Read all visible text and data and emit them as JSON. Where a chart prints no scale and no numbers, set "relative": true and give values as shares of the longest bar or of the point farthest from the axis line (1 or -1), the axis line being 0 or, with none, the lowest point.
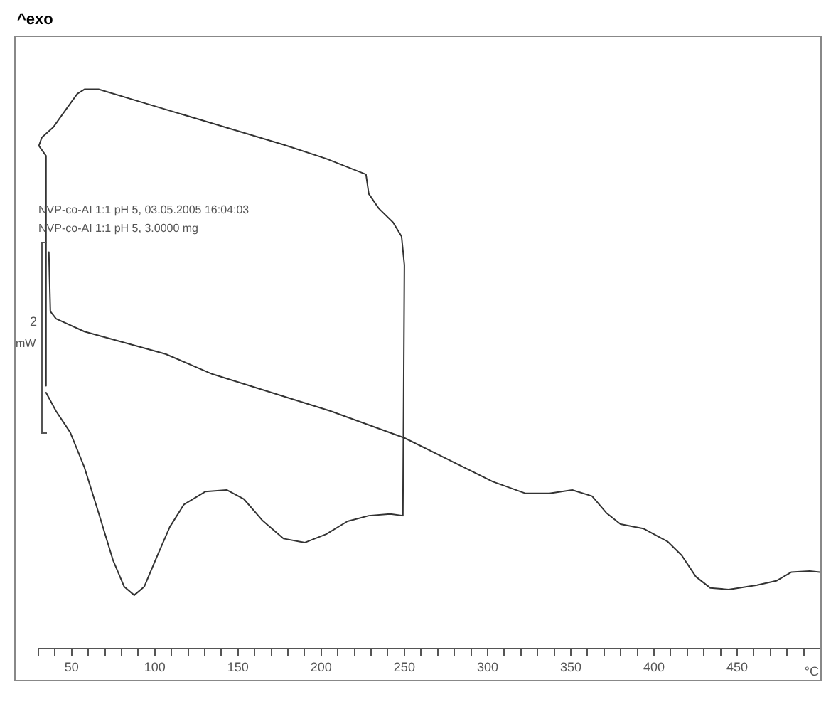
{
  "chart_data": {
    "type": "line",
    "title": "^exo",
    "xlabel": "°C",
    "relative": true,
    "legend": false,
    "grid": false,
    "marker": "none",
    "line_style": "solid",
    "annotations": [
      "NVP-co-AI 1:1 pH 5, 03.05.2005 16:04:03",
      "NVP-co-AI 1:1 pH 5, 3.0000 mg",
      "2",
      "mW"
    ],
    "xlim": [
      30,
      500
    ],
    "xticks": [
      {
        "value": 30,
        "label": null
      },
      {
        "value": 40,
        "label": null
      },
      50,
      {
        "value": 60,
        "label": null
      },
      {
        "value": 70,
        "label": null
      },
      {
        "value": 80,
        "label": null
      },
      {
        "value": 90,
        "label": null
      },
      100,
      {
        "value": 110,
        "label": null
      },
      {
        "value": 120,
        "label": null
      },
      {
        "value": 130,
        "label": null
      },
      {
        "value": 140,
        "label": null
      },
      150,
      {
        "value": 160,
        "label": null
      },
      {
        "value": 170,
        "label": null
      },
      {
        "value": 180,
        "label": null
      },
      {
        "value": 190,
        "label": null
      },
      200,
      {
        "value": 210,
        "label": null
      },
      {
        "value": 220,
        "label": null
      },
      {
        "value": 230,
        "label": null
      },
      {
        "value": 240,
        "label": null
      },
      250,
      {
        "value": 260,
        "label": null
      },
      {
        "value": 270,
        "label": null
      },
      {
        "value": 280,
        "label": null
      },
      {
        "value": 290,
        "label": null
      },
      300,
      {
        "value": 310,
        "label": null
      },
      {
        "value": 320,
        "label": null
      },
      {
        "value": 330,
        "label": null
      },
      {
        "value": 340,
        "label": null
      },
      350,
      {
        "value": 360,
        "label": null
      },
      {
        "value": 370,
        "label": null
      },
      {
        "value": 380,
        "label": null
      },
      {
        "value": 390,
        "label": null
      },
      400,
      {
        "value": 410,
        "label": null
      },
      {
        "value": 420,
        "label": null
      },
      {
        "value": 430,
        "label": null
      },
      {
        "value": 440,
        "label": null
      },
      450,
      {
        "value": 460,
        "label": null
      },
      {
        "value": 470,
        "label": null
      },
      {
        "value": 480,
        "label": null
      },
      {
        "value": 490,
        "label": null
      },
      {
        "value": 500,
        "label": null
      }
    ],
    "series": [
      {
        "color": "#333333",
        "x": [
          34.6,
          40.6,
          49.1,
          57.7,
          66.2,
          74.8,
          81.6,
          87.6,
          93.6,
          100.4,
          109,
          117.5,
          130.3,
          143.2,
          153.4,
          164.5,
          177.4,
          190.2,
          203,
          215.8,
          228.6,
          241.5,
          249.1,
          250,
          248.3,
          243.2,
          234.6,
          228.6,
          226.9,
          203,
          177.4,
          134.6,
          91.9,
          66.2,
          57.7,
          53.4,
          44.9,
          38.9,
          32.1,
          30.3,
          34.6,
          34.6
        ],
        "values": [
          0.458,
          0.425,
          0.387,
          0.324,
          0.243,
          0.159,
          0.111,
          0.096,
          0.111,
          0.159,
          0.218,
          0.258,
          0.281,
          0.284,
          0.268,
          0.23,
          0.197,
          0.19,
          0.205,
          0.228,
          0.238,
          0.241,
          0.238,
          0.686,
          0.737,
          0.762,
          0.787,
          0.813,
          0.848,
          0.876,
          0.901,
          0.939,
          0.977,
          1,
          1,
          0.992,
          0.957,
          0.932,
          0.914,
          0.899,
          0.881,
          0.47
        ]
      },
      {
        "color": "#333333",
        "x": [
          36.3,
          37.2,
          40.6,
          57.7,
          106.4,
          134.6,
          205.6,
          250,
          273.9,
          303,
          322.6,
          337.2,
          350.9,
          362.8,
          371.4,
          379.9,
          393.6,
          408.1,
          416.7,
          425.2,
          433.8,
          444.9,
          462,
          473.9,
          482.5,
          493.6,
          499.6
        ],
        "values": [
          0.709,
          0.603,
          0.59,
          0.567,
          0.527,
          0.491,
          0.425,
          0.377,
          0.342,
          0.299,
          0.278,
          0.278,
          0.284,
          0.273,
          0.243,
          0.223,
          0.215,
          0.192,
          0.167,
          0.129,
          0.109,
          0.106,
          0.114,
          0.122,
          0.137,
          0.139,
          0.137
        ]
      }
    ]
  }
}
